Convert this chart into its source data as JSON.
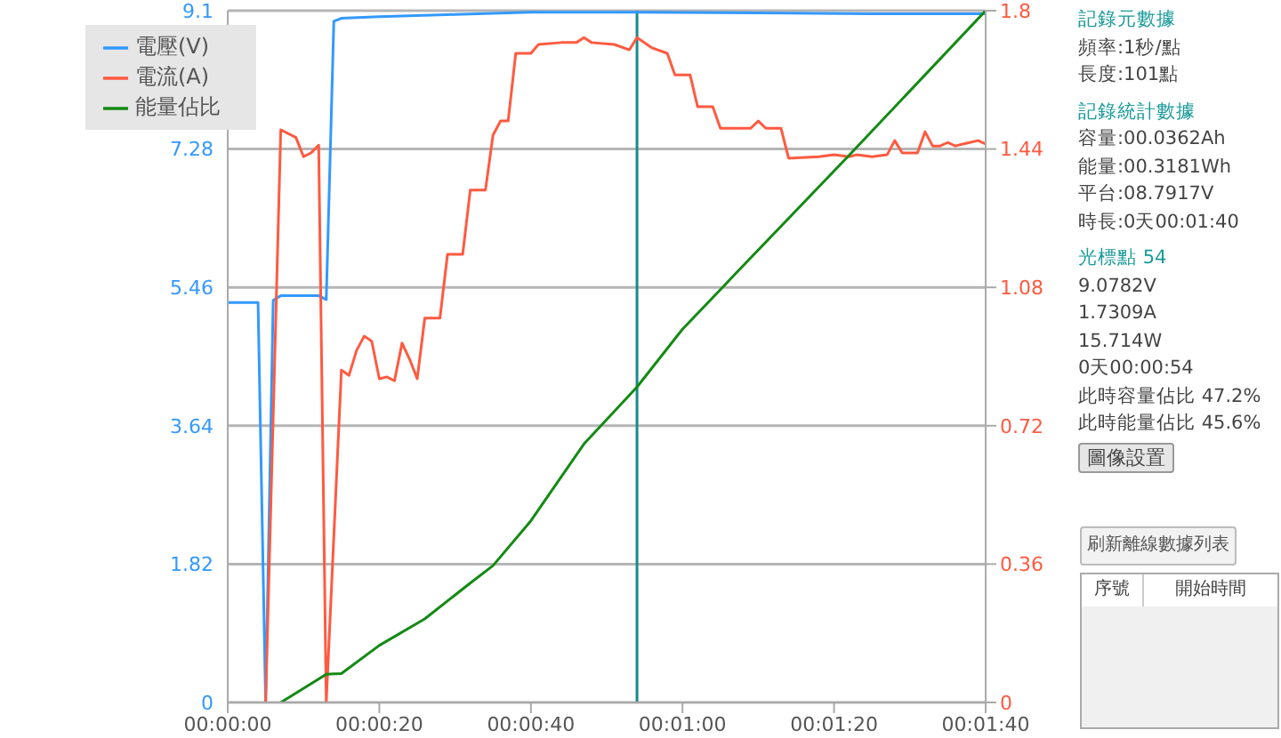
{
  "chart_data": {
    "type": "line",
    "x": [
      0,
      4,
      5,
      6,
      7,
      12,
      13,
      14,
      15,
      20,
      30,
      40,
      54,
      70,
      85,
      100
    ],
    "series": [
      {
        "name": "電壓(V)",
        "color": "#3399ff",
        "values": [
          5.26,
          5.26,
          0,
          5.29,
          5.35,
          5.35,
          5.3,
          8.96,
          9.0,
          9.02,
          9.05,
          9.08,
          9.08,
          9.07,
          9.06,
          9.06
        ]
      },
      {
        "name": "電流(A)",
        "color": "#ff5a40",
        "axis": "y2",
        "x": [
          5,
          7,
          9,
          10,
          11,
          12,
          13,
          15,
          16,
          17,
          18,
          19,
          20,
          21,
          22,
          23,
          24,
          25,
          26,
          28,
          29,
          31,
          32,
          34,
          35,
          36,
          37,
          38,
          40,
          41,
          44,
          46,
          47,
          48,
          51,
          53,
          54,
          56,
          58,
          59,
          61,
          62,
          64,
          65,
          69,
          70,
          71,
          73,
          74,
          78,
          80,
          82,
          83,
          85,
          87,
          88,
          89,
          91,
          92,
          93,
          94,
          95,
          96,
          97,
          99,
          100
        ],
        "values": [
          0,
          1.49,
          1.47,
          1.42,
          1.43,
          1.45,
          0,
          0.865,
          0.851,
          0.916,
          0.953,
          0.94,
          0.842,
          0.847,
          0.837,
          0.935,
          0.893,
          0.842,
          1.0,
          1.0,
          1.166,
          1.166,
          1.333,
          1.333,
          1.476,
          1.513,
          1.513,
          1.689,
          1.689,
          1.712,
          1.717,
          1.717,
          1.73,
          1.717,
          1.712,
          1.698,
          1.73,
          1.703,
          1.689,
          1.633,
          1.633,
          1.55,
          1.55,
          1.494,
          1.494,
          1.513,
          1.494,
          1.494,
          1.416,
          1.42,
          1.425,
          1.42,
          1.425,
          1.42,
          1.425,
          1.462,
          1.43,
          1.43,
          1.485,
          1.448,
          1.448,
          1.457,
          1.448,
          1.453,
          1.462,
          1.453
        ]
      },
      {
        "name": "能量佔比",
        "color": "#138a13",
        "x": [
          7,
          13,
          15,
          20,
          26,
          32,
          35,
          40,
          47,
          54,
          60,
          65,
          67,
          82,
          100
        ],
        "values": [
          0,
          0.37,
          0.38,
          0.75,
          1.1,
          1.57,
          1.8,
          2.39,
          3.4,
          4.15,
          4.91,
          5.43,
          5.64,
          7.2,
          9.1
        ]
      }
    ],
    "xlim": [
      0,
      100
    ],
    "xticks": [
      {
        "value": 0,
        "label": "00:00:00"
      },
      {
        "value": 20,
        "label": "00:00:20"
      },
      {
        "value": 40,
        "label": "00:00:40"
      },
      {
        "value": 60,
        "label": "00:01:00"
      },
      {
        "value": 80,
        "label": "00:01:20"
      },
      {
        "value": 100,
        "label": "00:01:40"
      }
    ],
    "ylim": [
      0,
      9.1
    ],
    "yticks": [
      0,
      1.82,
      3.64,
      5.46,
      7.28,
      9.1
    ],
    "y2lim": [
      0,
      1.8
    ],
    "y2ticks": [
      0,
      0.36,
      0.72,
      1.08,
      1.44,
      1.8
    ],
    "ref_lines": [
      {
        "axis": "x",
        "value": 54,
        "color": "#178a8a"
      }
    ],
    "grid": "y",
    "legend": "top left",
    "marker": "none",
    "line_style": "solid",
    "annotations": [
      "記錄元數據",
      "頻率:1秒/點",
      "長度:101點",
      "記錄統計數據",
      "容量:00.0362Ah",
      "能量:00.3181Wh",
      "平台:08.7917V",
      "時長:0天00:01:40",
      "光標點 54",
      "9.0782V",
      "1.7309A",
      "15.714W",
      "0天00:00:54",
      "此時容量佔比 47.2%",
      "此時能量佔比 45.6%",
      "圖像設置",
      "刷新離線數據列表",
      "序號",
      "開始時間"
    ]
  }
}
